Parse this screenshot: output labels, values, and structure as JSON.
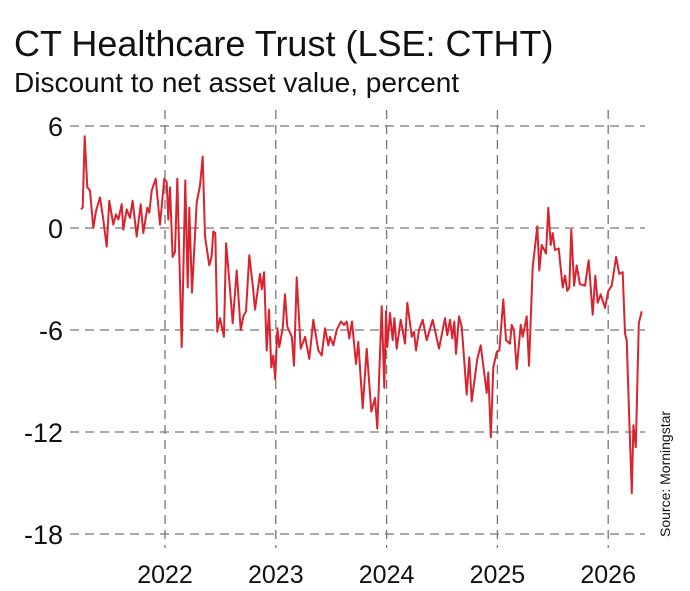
{
  "chart_data": {
    "type": "line",
    "title": "CT Healthcare Trust (LSE: CTHT)",
    "subtitle": "Discount to net asset value, percent",
    "source": "Source: Morningstar",
    "xlabel": "",
    "ylabel": "",
    "ylim": [
      -18,
      6
    ],
    "xlim": [
      2021.15,
      2026.35
    ],
    "yticks": [
      6,
      0,
      -6,
      -12,
      -18
    ],
    "ytick_labels": [
      "6",
      "0",
      "-6",
      "-12",
      "-18"
    ],
    "xticks": [
      2022,
      2023,
      2024,
      2025,
      2026
    ],
    "xtick_labels": [
      "2022",
      "2023",
      "2024",
      "2025",
      "2026"
    ],
    "grid": true,
    "line_color": "#d9232e",
    "series": [
      {
        "x": [
          2021.242,
          2021.257,
          2021.275,
          2021.299,
          2021.323,
          2021.353,
          2021.377,
          2021.413,
          2021.443,
          2021.474,
          2021.497,
          2021.533,
          2021.558,
          2021.579,
          2021.609,
          2021.624,
          2021.654,
          2021.684,
          2021.708,
          2021.745,
          2021.781,
          2021.804,
          2021.84,
          2021.858,
          2021.88,
          2021.916,
          2021.955,
          2021.994,
          2022.015,
          2022.03,
          2022.045,
          2022.069,
          2022.09,
          2022.111,
          2022.151,
          2022.183,
          2022.205,
          2022.219,
          2022.244,
          2022.286,
          2022.316,
          2022.34,
          2022.361,
          2022.4,
          2022.421,
          2022.436,
          2022.454,
          2022.472,
          2022.496,
          2022.532,
          2022.551,
          2022.58,
          2022.611,
          2022.647,
          2022.683,
          2022.707,
          2022.731,
          2022.761,
          2022.792,
          2022.812,
          2022.857,
          2022.875,
          2022.894,
          2022.918,
          2022.939,
          2022.959,
          2022.977,
          2022.995,
          2023.014,
          2023.032,
          2023.062,
          2023.083,
          2023.104,
          2023.144,
          2023.164,
          2023.189,
          2023.225,
          2023.264,
          2023.302,
          2023.338,
          2023.384,
          2023.414,
          2023.444,
          2023.474,
          2023.489,
          2023.519,
          2023.55,
          2023.588,
          2023.616,
          2023.64,
          2023.663,
          2023.688,
          2023.724,
          2023.745,
          2023.784,
          2023.82,
          2023.862,
          2023.895,
          2023.916,
          2023.956,
          2023.979,
          2023.995,
          2024.006,
          2024.031,
          2024.055,
          2024.07,
          2024.091,
          2024.127,
          2024.166,
          2024.187,
          2024.227,
          2024.247,
          2024.265,
          2024.292,
          2024.326,
          2024.362,
          2024.416,
          2024.473,
          2024.527,
          2024.548,
          2024.572,
          2024.593,
          2024.611,
          2024.626,
          2024.653,
          2024.678,
          2024.723,
          2024.746,
          2024.768,
          2024.819,
          2024.849,
          2024.903,
          2024.918,
          2024.94,
          2024.963,
          2024.994,
          2025.017,
          2025.053,
          2025.078,
          2025.114,
          2025.129,
          2025.15,
          2025.174,
          2025.21,
          2025.228,
          2025.264,
          2025.285,
          2025.319,
          2025.36,
          2025.378,
          2025.4,
          2025.439,
          2025.459,
          2025.481,
          2025.499,
          2025.52,
          2025.553,
          2025.589,
          2025.61,
          2025.631,
          2025.649,
          2025.667,
          2025.692,
          2025.716,
          2025.745,
          2025.791,
          2025.824,
          2025.86,
          2025.884,
          2025.905,
          2025.932,
          2025.971,
          2026.001,
          2026.032,
          2026.071,
          2026.1,
          2026.131,
          2026.152,
          2026.167,
          2026.191,
          2026.213,
          2026.227,
          2026.249,
          2026.276,
          2026.302
        ],
        "y": [
          1.1,
          1.2,
          5.4,
          2.4,
          2.2,
          0.0,
          1.0,
          1.8,
          0.5,
          -1.1,
          1.6,
          0.2,
          0.8,
          0.5,
          1.4,
          -0.1,
          1.1,
          0.6,
          1.6,
          -0.5,
          1.4,
          -0.3,
          1.2,
          0.9,
          2.2,
          2.9,
          0.2,
          2.9,
          2.7,
          0.5,
          2.4,
          -1.7,
          -1.4,
          2.9,
          -7.0,
          2.8,
          -3.5,
          1.2,
          -3.8,
          1.5,
          2.5,
          4.2,
          -0.5,
          -2.2,
          -1.7,
          -0.2,
          -0.3,
          -6.1,
          -5.3,
          -6.4,
          -0.9,
          -3.1,
          -5.6,
          -2.5,
          -6.0,
          -5.2,
          -4.9,
          -1.6,
          -3.4,
          -4.8,
          -2.7,
          -3.6,
          -2.6,
          -7.2,
          -4.8,
          -8.2,
          -7.5,
          -8.9,
          -5.9,
          -7.0,
          -5.9,
          -3.9,
          -5.8,
          -6.4,
          -8.1,
          -2.9,
          -7.1,
          -6.4,
          -7.7,
          -5.4,
          -7.2,
          -7.5,
          -5.9,
          -6.9,
          -6.4,
          -6.9,
          -6.0,
          -5.5,
          -5.7,
          -5.5,
          -6.5,
          -5.5,
          -8.0,
          -6.7,
          -10.6,
          -7.1,
          -10.8,
          -10.0,
          -11.8,
          -4.6,
          -9.4,
          -4.9,
          -7.0,
          -5.0,
          -6.6,
          -5.3,
          -7.1,
          -5.4,
          -6.8,
          -4.4,
          -6.4,
          -6.1,
          -7.2,
          -6.0,
          -5.4,
          -6.6,
          -5.4,
          -7.1,
          -5.3,
          -6.3,
          -5.4,
          -6.5,
          -5.5,
          -7.4,
          -5.2,
          -5.8,
          -9.8,
          -7.6,
          -10.2,
          -7.7,
          -6.9,
          -9.7,
          -8.5,
          -12.3,
          -8.2,
          -7.3,
          -7.2,
          -4.2,
          -6.6,
          -6.8,
          -5.7,
          -6.0,
          -8.3,
          -5.7,
          -6.4,
          -5.2,
          -8.1,
          -2.3,
          0.1,
          -2.5,
          -1.0,
          -1.5,
          1.2,
          -1.0,
          -0.3,
          -1.3,
          -1.2,
          -3.5,
          -2.8,
          -3.7,
          -3.5,
          -0.1,
          -3.4,
          -2.2,
          -3.3,
          -3.4,
          -1.9,
          -5.1,
          -2.8,
          -4.4,
          -3.9,
          -4.7,
          -3.7,
          -3.4,
          -1.7,
          -2.7,
          -2.6,
          -6.2,
          -6.6,
          -11.5,
          -15.6,
          -11.6,
          -12.9,
          -5.6,
          -4.9
        ]
      }
    ]
  }
}
